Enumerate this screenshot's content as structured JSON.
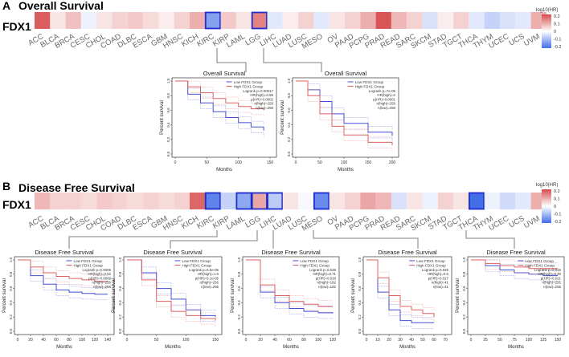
{
  "figure": {
    "panel_a": {
      "label": "A",
      "title": "Overall Survival",
      "gene": "FDX1",
      "legend_title": "log10(HR)",
      "legend_ticks": [
        "0.2",
        "0.1",
        "0",
        "-0.1",
        "-0.2"
      ],
      "cancers": [
        "ACC",
        "BLCA",
        "BRCA",
        "CESC",
        "CHOL",
        "COAD",
        "DLBC",
        "ESCA",
        "GBM",
        "HNSC",
        "KICH",
        "KIRC",
        "KIRP",
        "LAML",
        "LGG",
        "LIHC",
        "LUAD",
        "LUSC",
        "MESO",
        "OV",
        "PAAD",
        "PCPG",
        "PRAD",
        "READ",
        "SARC",
        "SKCM",
        "STAD",
        "TGCT",
        "THCA",
        "THYM",
        "UCEC",
        "UCS",
        "UVM"
      ],
      "log10_hr": [
        0.18,
        0.03,
        0.07,
        -0.02,
        0.03,
        0.05,
        0.06,
        0.04,
        0.02,
        0.05,
        0.09,
        -0.13,
        0.06,
        0.03,
        0.14,
        -0.03,
        0.02,
        0.05,
        -0.03,
        0.03,
        0.05,
        0.09,
        0.19,
        0.08,
        0.05,
        -0.04,
        0.02,
        0.05,
        -0.03,
        -0.06,
        -0.04,
        -0.03,
        0.09
      ],
      "highlighted": [
        "KIRC",
        "LGG"
      ],
      "km_plots": [
        {
          "title": "Overall Survival",
          "xlabel": "Months",
          "ylabel": "Percent survival",
          "legend": [
            "Low FDX1 Group",
            "High FDX1 Group"
          ],
          "stats": [
            "Logrank p=0.00017",
            "HR(high)=0.56",
            "p(HR)=0.0002",
            "n(high)=258",
            "n(low)=258"
          ],
          "xticks": [
            "0",
            "50",
            "100",
            "150"
          ],
          "yticks": [
            "0.0",
            "0.2",
            "0.4",
            "0.6",
            "0.8",
            "1.0"
          ]
        },
        {
          "title": "Overall Survival",
          "xlabel": "Months",
          "ylabel": "Percent survival",
          "legend": [
            "Low FDX1 Group",
            "High FDX1 Group"
          ],
          "stats": [
            "Logrank p=7e-05",
            "HR(high)=2",
            "p(HR)=0.0001",
            "n(high)=258",
            "n(low)=258"
          ],
          "xticks": [
            "0",
            "50",
            "100",
            "150",
            "200"
          ],
          "yticks": [
            "0.0",
            "0.2",
            "0.4",
            "0.6",
            "0.8",
            "1.0"
          ]
        }
      ]
    },
    "panel_b": {
      "label": "B",
      "title": "Disease Free Survival",
      "gene": "FDX1",
      "legend_title": "log10(HR)",
      "legend_ticks": [
        "0.2",
        "0.1",
        "0",
        "-0.1",
        "-0.2"
      ],
      "cancers": [
        "ACC",
        "BLCA",
        "BRCA",
        "CESC",
        "CHOL",
        "COAD",
        "DLBC",
        "ESCA",
        "GBM",
        "HNSC",
        "KICH",
        "KIRC",
        "KIRP",
        "LAML",
        "LGG",
        "LIHC",
        "LUAD",
        "LUSC",
        "MESO",
        "OV",
        "PAAD",
        "PCPG",
        "PRAD",
        "READ",
        "SARC",
        "SKCM",
        "STAD",
        "TGCT",
        "THCA",
        "THYM",
        "UCEC",
        "UCS",
        "UVM"
      ],
      "log10_hr": [
        0.08,
        0.05,
        0.05,
        0.04,
        0.06,
        0.05,
        0.04,
        0.05,
        0.04,
        0.05,
        0.17,
        -0.17,
        -0.06,
        -0.12,
        0.1,
        -0.07,
        0.03,
        -0.01,
        -0.16,
        0.03,
        0.05,
        0.1,
        0.08,
        -0.04,
        0.03,
        -0.02,
        0.05,
        0.03,
        -0.2,
        -0.02,
        -0.05,
        -0.03,
        0.09
      ],
      "highlighted": [
        "KIRC",
        "LAML",
        "LGG",
        "LIHC",
        "MESO",
        "THCA"
      ],
      "km_plots": [
        {
          "title": "Disease Free Survival",
          "xlabel": "Months",
          "ylabel": "Percent survival",
          "legend": [
            "Low FDX1 Group",
            "High FDX1 Group"
          ],
          "stats": [
            "Logrank p=0.0009",
            "HR(high)=0.52",
            "p(HR)=0.0009",
            "n(high)=258",
            "n(low)=258"
          ],
          "xticks": [
            "0",
            "20",
            "40",
            "60",
            "80",
            "100",
            "120",
            "140"
          ],
          "yticks": [
            "0.0",
            "0.2",
            "0.4",
            "0.6",
            "0.8",
            "1.0"
          ]
        },
        {
          "title": "Disease Free Survival",
          "xlabel": "Months",
          "ylabel": "Percent survival",
          "legend": [
            "Low FDX1 Group",
            "High FDX1 Group"
          ],
          "stats": [
            "Logrank p=6.5e-05",
            "HR(high)=1.9",
            "p(HR)=9.1e-05",
            "n(high)=256",
            "n(low)=256"
          ],
          "xticks": [
            "0",
            "50",
            "100",
            "150"
          ],
          "yticks": [
            "0.0",
            "0.2",
            "0.4",
            "0.6",
            "0.8",
            "1.0"
          ]
        },
        {
          "title": "Disease Free Survival",
          "xlabel": "Months",
          "ylabel": "Percent survival",
          "legend": [
            "Low FDX1 Group",
            "High FDX1 Group"
          ],
          "stats": [
            "Logrank p=0.028",
            "HR(high)=0.71",
            "p(HR)=0.028",
            "n(high)=182",
            "n(low)=182"
          ],
          "xticks": [
            "0",
            "20",
            "40",
            "60",
            "80",
            "100",
            "120"
          ],
          "yticks": [
            "0.0",
            "0.2",
            "0.4",
            "0.6",
            "0.8",
            "1.0"
          ]
        },
        {
          "title": "Disease Free Survival",
          "xlabel": "Months",
          "ylabel": "Percent survival",
          "legend": [
            "Low FDX1 Group",
            "High FDX1 Group"
          ],
          "stats": [
            "Logrank p=0.025",
            "HR(high)=0.5",
            "p(HR)=0.027",
            "n(high)=41",
            "n(low)=41"
          ],
          "xticks": [
            "0",
            "10",
            "20",
            "30",
            "40",
            "50",
            "60",
            "70"
          ],
          "yticks": [
            "0.0",
            "0.2",
            "0.4",
            "0.6",
            "0.8",
            "1.0"
          ]
        },
        {
          "title": "Disease Free Survival",
          "xlabel": "Months",
          "ylabel": "Percent survival",
          "legend": [
            "Low FDX1 Group",
            "High FDX1 Group"
          ],
          "stats": [
            "Logrank p=0.019",
            "HR(high)=0.49",
            "p(HR)=0.021",
            "n(high)=255",
            "n(low)=255"
          ],
          "xticks": [
            "0",
            "25",
            "50",
            "75",
            "100",
            "125",
            "150"
          ],
          "yticks": [
            "0.0",
            "0.2",
            "0.4",
            "0.6",
            "0.8",
            "1.0"
          ]
        }
      ]
    }
  },
  "chart_data": [
    {
      "type": "heatmap",
      "title": "Overall Survival",
      "row_label": "FDX1",
      "categories": [
        "ACC",
        "BLCA",
        "BRCA",
        "CESC",
        "CHOL",
        "COAD",
        "DLBC",
        "ESCA",
        "GBM",
        "HNSC",
        "KICH",
        "KIRC",
        "KIRP",
        "LAML",
        "LGG",
        "LIHC",
        "LUAD",
        "LUSC",
        "MESO",
        "OV",
        "PAAD",
        "PCPG",
        "PRAD",
        "READ",
        "SARC",
        "SKCM",
        "STAD",
        "TGCT",
        "THCA",
        "THYM",
        "UCEC",
        "UCS",
        "UVM"
      ],
      "values": [
        0.18,
        0.03,
        0.07,
        -0.02,
        0.03,
        0.05,
        0.06,
        0.04,
        0.02,
        0.05,
        0.09,
        -0.13,
        0.06,
        0.03,
        0.14,
        -0.03,
        0.02,
        0.05,
        -0.03,
        0.03,
        0.05,
        0.09,
        0.19,
        0.08,
        0.05,
        -0.04,
        0.02,
        0.05,
        -0.03,
        -0.06,
        -0.04,
        -0.03,
        0.09
      ],
      "colorbar": "log10(HR)",
      "range": [
        -0.2,
        0.2
      ]
    },
    {
      "type": "heatmap",
      "title": "Disease Free Survival",
      "row_label": "FDX1",
      "categories": [
        "ACC",
        "BLCA",
        "BRCA",
        "CESC",
        "CHOL",
        "COAD",
        "DLBC",
        "ESCA",
        "GBM",
        "HNSC",
        "KICH",
        "KIRC",
        "KIRP",
        "LAML",
        "LGG",
        "LIHC",
        "LUAD",
        "LUSC",
        "MESO",
        "OV",
        "PAAD",
        "PCPG",
        "PRAD",
        "READ",
        "SARC",
        "SKCM",
        "STAD",
        "TGCT",
        "THCA",
        "THYM",
        "UCEC",
        "UCS",
        "UVM"
      ],
      "values": [
        0.08,
        0.05,
        0.05,
        0.04,
        0.06,
        0.05,
        0.04,
        0.05,
        0.04,
        0.05,
        0.17,
        -0.17,
        -0.06,
        -0.12,
        0.1,
        -0.07,
        0.03,
        -0.01,
        -0.16,
        0.03,
        0.05,
        0.1,
        0.08,
        -0.04,
        0.03,
        -0.02,
        0.05,
        0.03,
        -0.2,
        -0.02,
        -0.05,
        -0.03,
        0.09
      ],
      "colorbar": "log10(HR)",
      "range": [
        -0.2,
        0.2
      ]
    },
    {
      "type": "line",
      "title": "Overall Survival (KIRC)",
      "xlabel": "Months",
      "ylabel": "Percent survival",
      "xlim": [
        0,
        150
      ],
      "ylim": [
        0,
        1
      ],
      "series": [
        {
          "name": "Low FDX1 Group",
          "x": [
            0,
            20,
            40,
            60,
            80,
            100,
            120,
            140
          ],
          "y": [
            1,
            0.82,
            0.7,
            0.58,
            0.5,
            0.43,
            0.37,
            0.32
          ]
        },
        {
          "name": "High FDX1 Group",
          "x": [
            0,
            20,
            40,
            60,
            80,
            100,
            120,
            140
          ],
          "y": [
            1,
            0.92,
            0.84,
            0.76,
            0.7,
            0.65,
            0.62,
            0.6
          ]
        }
      ]
    },
    {
      "type": "line",
      "title": "Overall Survival (LGG)",
      "xlabel": "Months",
      "ylabel": "Percent survival",
      "xlim": [
        0,
        200
      ],
      "ylim": [
        0,
        1
      ],
      "series": [
        {
          "name": "Low FDX1 Group",
          "x": [
            0,
            25,
            50,
            75,
            100,
            150,
            200
          ],
          "y": [
            1,
            0.88,
            0.72,
            0.55,
            0.42,
            0.3,
            0.25
          ]
        },
        {
          "name": "High FDX1 Group",
          "x": [
            0,
            25,
            50,
            75,
            100,
            150,
            200
          ],
          "y": [
            1,
            0.8,
            0.55,
            0.38,
            0.26,
            0.16,
            0.12
          ]
        }
      ]
    },
    {
      "type": "line",
      "title": "Disease Free Survival (KIRC)",
      "xlabel": "Months",
      "ylabel": "Percent survival",
      "xlim": [
        0,
        140
      ],
      "ylim": [
        0,
        1
      ],
      "series": [
        {
          "name": "Low FDX1 Group",
          "x": [
            0,
            20,
            40,
            60,
            80,
            100,
            120,
            140
          ],
          "y": [
            1,
            0.78,
            0.66,
            0.58,
            0.55,
            0.53,
            0.52,
            0.52
          ]
        },
        {
          "name": "High FDX1 Group",
          "x": [
            0,
            20,
            40,
            60,
            80,
            100,
            120,
            140
          ],
          "y": [
            1,
            0.9,
            0.82,
            0.77,
            0.74,
            0.72,
            0.7,
            0.7
          ]
        }
      ]
    },
    {
      "type": "line",
      "title": "Disease Free Survival (LGG)",
      "xlabel": "Months",
      "ylabel": "Percent survival",
      "xlim": [
        0,
        150
      ],
      "ylim": [
        0,
        1
      ],
      "series": [
        {
          "name": "Low FDX1 Group",
          "x": [
            0,
            25,
            50,
            75,
            100,
            125,
            150
          ],
          "y": [
            1,
            0.82,
            0.6,
            0.45,
            0.3,
            0.22,
            0.2
          ]
        },
        {
          "name": "High FDX1 Group",
          "x": [
            0,
            25,
            50,
            75,
            100,
            125,
            150
          ],
          "y": [
            1,
            0.72,
            0.42,
            0.28,
            0.22,
            0.18,
            0.15
          ]
        }
      ]
    },
    {
      "type": "line",
      "title": "Disease Free Survival (LIHC)",
      "xlabel": "Months",
      "ylabel": "Percent survival",
      "xlim": [
        0,
        120
      ],
      "ylim": [
        0,
        1
      ],
      "series": [
        {
          "name": "Low FDX1 Group",
          "x": [
            0,
            20,
            40,
            60,
            80,
            100,
            120
          ],
          "y": [
            1,
            0.55,
            0.4,
            0.32,
            0.28,
            0.26,
            0.25
          ]
        },
        {
          "name": "High FDX1 Group",
          "x": [
            0,
            20,
            40,
            60,
            80,
            100,
            120
          ],
          "y": [
            1,
            0.65,
            0.5,
            0.42,
            0.38,
            0.35,
            0.35
          ]
        }
      ]
    },
    {
      "type": "line",
      "title": "Disease Free Survival (MESO)",
      "xlabel": "Months",
      "ylabel": "Percent survival",
      "xlim": [
        0,
        70
      ],
      "ylim": [
        0,
        1
      ],
      "series": [
        {
          "name": "Low FDX1 Group",
          "x": [
            0,
            10,
            20,
            30,
            40,
            50,
            60
          ],
          "y": [
            1,
            0.55,
            0.3,
            0.15,
            0.12,
            0.12,
            0.12
          ]
        },
        {
          "name": "High FDX1 Group",
          "x": [
            0,
            10,
            20,
            30,
            40,
            50,
            60
          ],
          "y": [
            1,
            0.75,
            0.5,
            0.35,
            0.3,
            0.25,
            0.2
          ]
        }
      ]
    },
    {
      "type": "line",
      "title": "Disease Free Survival (THCA)",
      "xlabel": "Months",
      "ylabel": "Percent survival",
      "xlim": [
        0,
        150
      ],
      "ylim": [
        0,
        1
      ],
      "series": [
        {
          "name": "Low FDX1 Group",
          "x": [
            0,
            25,
            50,
            75,
            100,
            125,
            150
          ],
          "y": [
            1,
            0.92,
            0.86,
            0.82,
            0.8,
            0.78,
            0.78
          ]
        },
        {
          "name": "High FDX1 Group",
          "x": [
            0,
            25,
            50,
            75,
            100,
            125,
            150
          ],
          "y": [
            1,
            0.95,
            0.92,
            0.9,
            0.88,
            0.88,
            0.88
          ]
        }
      ]
    }
  ]
}
